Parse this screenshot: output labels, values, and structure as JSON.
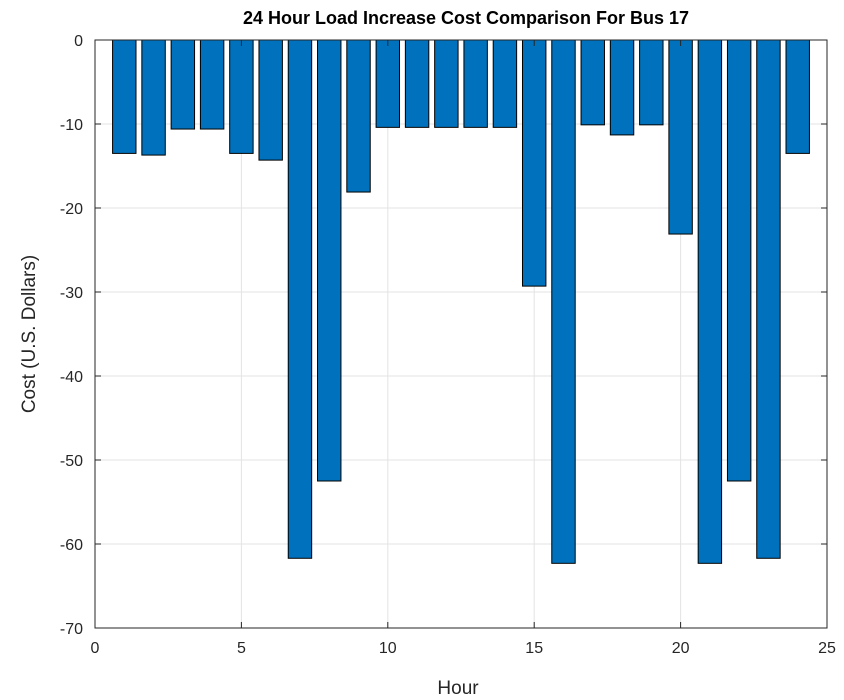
{
  "chart_data": {
    "type": "bar",
    "title": "24 Hour Load Increase Cost Comparison For Bus 17",
    "xlabel": "Hour",
    "ylabel": "Cost (U.S. Dollars)",
    "xlim": [
      0,
      25
    ],
    "ylim": [
      -70,
      0
    ],
    "xticks": [
      0,
      5,
      10,
      15,
      20,
      25
    ],
    "yticks": [
      0,
      -10,
      -20,
      -30,
      -40,
      -50,
      -60,
      -70
    ],
    "grid": true,
    "bar_color": "#0072BD",
    "x": [
      1,
      2,
      3,
      4,
      5,
      6,
      7,
      8,
      9,
      10,
      11,
      12,
      13,
      14,
      15,
      16,
      17,
      18,
      19,
      20,
      21,
      22,
      23,
      24
    ],
    "values": [
      -13.5,
      -13.7,
      -10.6,
      -10.6,
      -13.5,
      -14.3,
      -61.7,
      -52.5,
      -18.1,
      -10.4,
      -10.4,
      -10.4,
      -10.4,
      -10.4,
      -29.3,
      -62.3,
      -10.1,
      -11.3,
      -10.1,
      -23.1,
      -62.3,
      -52.5,
      -61.7,
      -13.5
    ]
  }
}
